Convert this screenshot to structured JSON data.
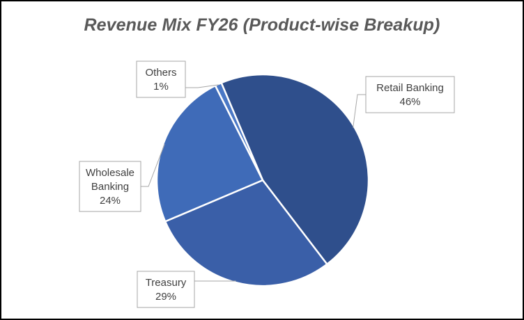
{
  "chart_data": {
    "type": "pie",
    "title": "Revenue Mix FY26 (Product-wise Breakup)",
    "categories": [
      "Retail Banking",
      "Treasury",
      "Wholesale Banking",
      "Others"
    ],
    "values": [
      46,
      29,
      24,
      1
    ],
    "unit": "%",
    "data_labels": [
      {
        "lines": [
          "Retail Banking",
          "46%"
        ]
      },
      {
        "lines": [
          "Treasury",
          "29%"
        ]
      },
      {
        "lines": [
          "Wholesale",
          "Banking",
          "24%"
        ]
      },
      {
        "lines": [
          "Others",
          "1%"
        ]
      }
    ],
    "colors": [
      "#2f4f8c",
      "#3a5fa8",
      "#3f6bb8",
      "#4a78c6"
    ],
    "legend": "none",
    "grid": false
  }
}
